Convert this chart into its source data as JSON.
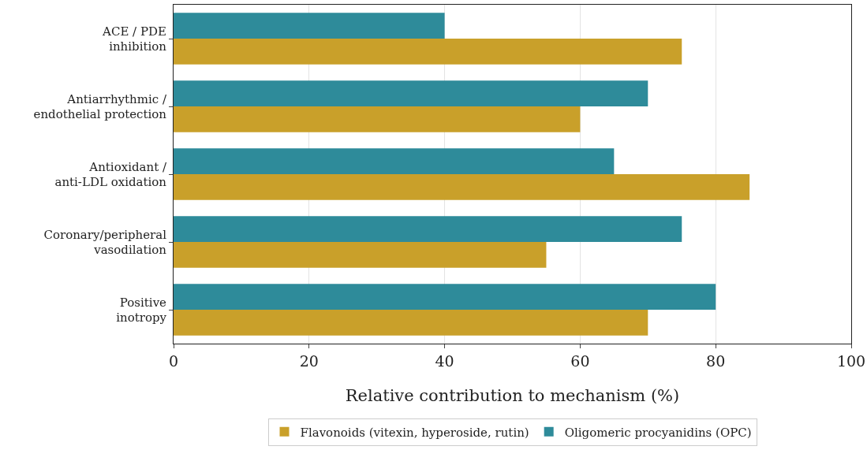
{
  "chart_data": {
    "type": "bar",
    "orientation": "horizontal",
    "xlabel": "Relative contribution to mechanism (%)",
    "categories": [
      "ACE / PDE\ninhibition",
      "Antiarrhythmic /\nendothelial protection",
      "Antioxidant /\nanti-LDL oxidation",
      "Coronary/peripheral\nvasodilation",
      "Positive\ninotropy"
    ],
    "series": [
      {
        "name": "Flavonoids (vitexin, hyperoside, rutin)",
        "color": "#c9a02a",
        "values": [
          75,
          60,
          85,
          55,
          70
        ]
      },
      {
        "name": "Oligomeric procyanidins (OPC)",
        "color": "#2e8b9a",
        "values": [
          40,
          70,
          65,
          75,
          80
        ]
      }
    ],
    "xlim": [
      0,
      100
    ],
    "xticks": [
      0,
      20,
      40,
      60,
      80,
      100
    ],
    "grid": "x",
    "legend": "bottom"
  }
}
